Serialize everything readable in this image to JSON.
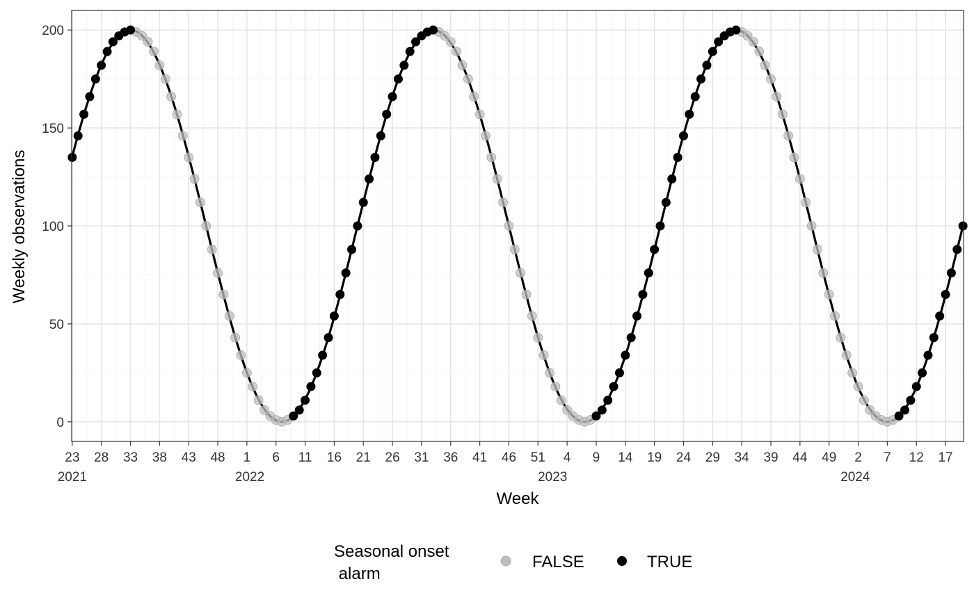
{
  "chart_data": {
    "type": "scatter",
    "xlabel": "Week",
    "ylabel": "Weekly observations",
    "x_range": [
      "2021-W23",
      "2024-W19"
    ],
    "ylim": [
      -10,
      210
    ],
    "y_ticks": [
      0,
      50,
      100,
      150,
      200
    ],
    "x_tick_labels": [
      "23",
      "28",
      "33",
      "38",
      "43",
      "48",
      "1",
      "6",
      "11",
      "16",
      "21",
      "26",
      "31",
      "36",
      "41",
      "46",
      "51",
      "4",
      "9",
      "14",
      "19",
      "24",
      "29",
      "34",
      "39",
      "44",
      "49",
      "2",
      "7",
      "12",
      "17"
    ],
    "year_labels": [
      {
        "label": "2021",
        "at": "2021-W23"
      },
      {
        "label": "2022",
        "at": "2022-W01"
      },
      {
        "label": "2023",
        "at": "2023-W01"
      },
      {
        "label": "2024",
        "at": "2024-W01"
      }
    ],
    "grid": true,
    "legend": {
      "title_line1": "Seasonal onset",
      "title_line2": " alarm",
      "position": "bottom",
      "entries": [
        {
          "label": "FALSE",
          "color": "#bdbdbd"
        },
        {
          "label": "TRUE",
          "color": "#000000"
        }
      ]
    },
    "series": [
      {
        "type": "line",
        "color": "#000000",
        "weeks_per_cycle": 52,
        "peak_week": "2021-W33",
        "peak_value": 200,
        "trough_value": 0
      }
    ],
    "points": {
      "first_week": "2021-W23",
      "values": [
        135,
        146,
        157,
        166,
        175,
        182,
        189,
        194,
        197,
        199,
        200,
        199,
        197,
        194,
        189,
        182,
        175,
        166,
        157,
        146,
        135,
        124,
        112,
        100,
        88,
        76,
        65,
        54,
        43,
        34,
        25,
        18,
        11,
        6,
        3,
        1,
        0,
        1,
        3,
        6,
        11,
        18,
        25,
        34,
        43,
        54,
        65,
        76,
        88,
        100,
        112,
        124,
        135,
        146,
        157,
        166,
        175,
        182,
        189,
        194,
        197,
        199,
        200,
        199,
        197,
        194,
        189,
        182,
        175,
        166,
        157,
        146,
        135,
        124,
        112,
        100,
        88,
        76,
        65,
        54,
        43,
        34,
        25,
        18,
        11,
        6,
        3,
        1,
        0,
        1,
        3,
        6,
        11,
        18,
        25,
        34,
        43,
        54,
        65,
        76,
        88,
        100,
        112,
        124,
        135,
        146,
        157,
        166,
        175,
        182,
        189,
        194,
        197,
        199,
        200,
        199,
        197,
        194,
        189,
        182,
        175,
        166,
        157,
        146,
        135,
        124,
        112,
        100,
        88,
        76,
        65,
        54,
        43,
        34,
        25,
        18,
        11,
        6,
        3,
        1,
        0,
        1,
        3,
        6,
        11,
        18,
        25,
        34,
        43,
        54,
        65,
        76,
        88,
        100
      ],
      "alarm": [
        true,
        true,
        true,
        true,
        true,
        true,
        true,
        true,
        true,
        true,
        true,
        false,
        false,
        false,
        false,
        false,
        false,
        false,
        false,
        false,
        false,
        false,
        false,
        false,
        false,
        false,
        false,
        false,
        false,
        false,
        false,
        false,
        false,
        false,
        false,
        false,
        false,
        false,
        true,
        true,
        true,
        true,
        true,
        true,
        true,
        true,
        true,
        true,
        true,
        true,
        true,
        true,
        true,
        true,
        true,
        true,
        true,
        true,
        true,
        true,
        true,
        true,
        true,
        false,
        false,
        false,
        false,
        false,
        false,
        false,
        false,
        false,
        false,
        false,
        false,
        false,
        false,
        false,
        false,
        false,
        false,
        false,
        false,
        false,
        false,
        false,
        false,
        false,
        false,
        false,
        true,
        true,
        true,
        true,
        true,
        true,
        true,
        true,
        true,
        true,
        true,
        true,
        true,
        true,
        true,
        true,
        true,
        true,
        true,
        true,
        true,
        true,
        true,
        true,
        true,
        false,
        false,
        false,
        false,
        false,
        false,
        false,
        false,
        false,
        false,
        false,
        false,
        false,
        false,
        false,
        false,
        false,
        false,
        false,
        false,
        false,
        false,
        false,
        false,
        false,
        false,
        false,
        true,
        true,
        true,
        true,
        true,
        true,
        true,
        true,
        true,
        true,
        true,
        true
      ]
    }
  }
}
